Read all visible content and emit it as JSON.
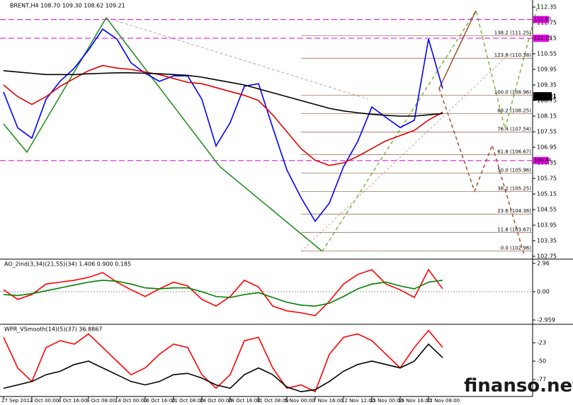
{
  "chart_data": [
    {
      "type": "line",
      "title": "BRENT,H4 108.70 109.30 108.62 109.21",
      "categories": [
        "27 Sep 2013",
        null,
        "2 Oct 00:00",
        null,
        "4 Oct 16:00",
        null,
        "9 Oct 08:00",
        null,
        "14 Oct 00:00",
        null,
        "16 Oct 16:00",
        null,
        "21 Oct 08:00",
        null,
        "24 Oct 00:00",
        null,
        "28 Oct 16:00",
        null,
        "31 Oct 08:00",
        null,
        "5 Nov 00:00",
        null,
        "7 Nov 16:00",
        null,
        "12 Nov 12:00",
        null,
        "15 Nov 00:00",
        null,
        "19 Nov 16:00",
        null,
        "22 Nov 08:00",
        null
      ],
      "series": [
        {
          "color": "#0000ff",
          "values": [
            109.08,
            107.7,
            107.3,
            108.8,
            109.5,
            110.0,
            110.7,
            111.5,
            111.12,
            110.2,
            109.8,
            109.49,
            109.7,
            109.7,
            108.8,
            107.0,
            107.9,
            109.3,
            109.4,
            107.71,
            106.08,
            105.01,
            104.1,
            104.8,
            106.2,
            107.17,
            108.5,
            108.1,
            107.71,
            107.99,
            111.12,
            109.21
          ]
        },
        {
          "color": "#e00000",
          "values": [
            109.35,
            108.9,
            108.6,
            108.9,
            109.3,
            109.6,
            109.9,
            110.1,
            110.0,
            109.95,
            109.85,
            109.75,
            109.6,
            109.45,
            109.4,
            109.25,
            109.1,
            108.95,
            108.75,
            108.2,
            107.55,
            106.9,
            106.45,
            106.25,
            106.35,
            106.6,
            106.9,
            107.2,
            107.4,
            107.6,
            108.0,
            108.3
          ]
        },
        {
          "color": "#000000",
          "values": [
            109.9,
            109.85,
            109.8,
            109.75,
            109.75,
            109.75,
            109.78,
            109.8,
            109.82,
            109.82,
            109.8,
            109.78,
            109.75,
            109.72,
            109.65,
            109.55,
            109.45,
            109.35,
            109.2,
            109.05,
            108.9,
            108.75,
            108.6,
            108.45,
            108.35,
            108.28,
            108.22,
            108.18,
            108.15,
            108.15,
            108.2,
            108.25
          ]
        }
      ],
      "ylim": [
        102.75,
        112.35
      ],
      "yticks": [
        112.35,
        111.75,
        111.15,
        110.55,
        109.95,
        109.35,
        108.75,
        108.15,
        107.55,
        106.95,
        106.35,
        105.75,
        105.15,
        104.55,
        103.95,
        103.35,
        102.75
      ],
      "fib_levels": [
        {
          "value": 111.25,
          "label": "138.2 (111.25)"
        },
        {
          "value": 110.38,
          "label": "123.6 (110.38)"
        },
        {
          "value": 108.96,
          "label": "100.0 (108.96)"
        },
        {
          "value": 108.25,
          "label": "88.2 (108.25)"
        },
        {
          "value": 107.54,
          "label": "76.4 (107.54)"
        },
        {
          "value": 106.67,
          "label": "61.8 (106.67)"
        },
        {
          "value": 105.96,
          "label": "50.0 (105.96)"
        },
        {
          "value": 105.25,
          "label": "38.2 (105.25)"
        },
        {
          "value": 104.38,
          "label": "23.6 (104.38)"
        },
        {
          "value": 103.67,
          "label": "11.8 (103.67)"
        },
        {
          "value": 102.96,
          "label": "0.0 (102.96)"
        }
      ],
      "levels": [
        111.87,
        111.15,
        106.44
      ],
      "levels_color": "#e000e0",
      "fib_color": "#8b5a3c",
      "current_price": 108.91,
      "grid": false
    },
    {
      "type": "line",
      "title": "AO_2ind(3,34)(21,55)(34) 1.406 0.900 0.185",
      "series": [
        {
          "color": "#ff0000",
          "values": [
            0.2,
            -0.8,
            -0.3,
            0.8,
            1.0,
            1.2,
            1.5,
            2.0,
            1.0,
            0.2,
            -0.5,
            0.3,
            1.0,
            0.6,
            -0.8,
            -1.5,
            -0.5,
            1.2,
            0.5,
            -1.5,
            -2.0,
            -2.2,
            -2.5,
            -1.0,
            0.8,
            1.8,
            2.3,
            0.8,
            0.2,
            -0.6,
            2.3,
            0.3
          ]
        },
        {
          "color": "#008000",
          "values": [
            -0.3,
            -0.4,
            -0.2,
            0.1,
            0.4,
            0.7,
            1.0,
            1.2,
            1.1,
            0.8,
            0.4,
            0.3,
            0.4,
            0.4,
            0.0,
            -0.5,
            -0.6,
            -0.3,
            -0.1,
            -0.6,
            -1.1,
            -1.4,
            -1.5,
            -1.2,
            -0.5,
            0.3,
            0.8,
            1.0,
            0.6,
            0.3,
            1.0,
            1.2
          ]
        }
      ],
      "ylim": [
        -2.959,
        2.96
      ],
      "yticks": [
        2.96,
        {
          "value": 0,
          "label": "0.00"
        },
        -2.959
      ],
      "grid": false
    },
    {
      "type": "line",
      "title": "WPR_VSmooth(14)(5)(37) 36.8867",
      "series": [
        {
          "color": "#ff0000",
          "values": [
            -15,
            -60,
            -80,
            -30,
            -20,
            -25,
            -10,
            -30,
            -50,
            -70,
            -60,
            -40,
            -25,
            -30,
            -70,
            -90,
            -70,
            -20,
            -15,
            -60,
            -90,
            -85,
            -95,
            -40,
            -15,
            -10,
            -20,
            -40,
            -60,
            -30,
            -5,
            -30
          ]
        },
        {
          "color": "#000000",
          "values": [
            -90,
            -85,
            -80,
            -70,
            -65,
            -55,
            -50,
            -60,
            -70,
            -80,
            -85,
            -80,
            -70,
            -68,
            -75,
            -85,
            -90,
            -70,
            -60,
            -70,
            -88,
            -95,
            -92,
            -80,
            -65,
            -55,
            -50,
            -55,
            -60,
            -50,
            -25,
            -45
          ]
        }
      ],
      "ylim": [
        -100,
        0
      ],
      "yticks": [
        -23,
        -50,
        -77
      ],
      "grid": false
    }
  ],
  "watermark": "finanso.net"
}
